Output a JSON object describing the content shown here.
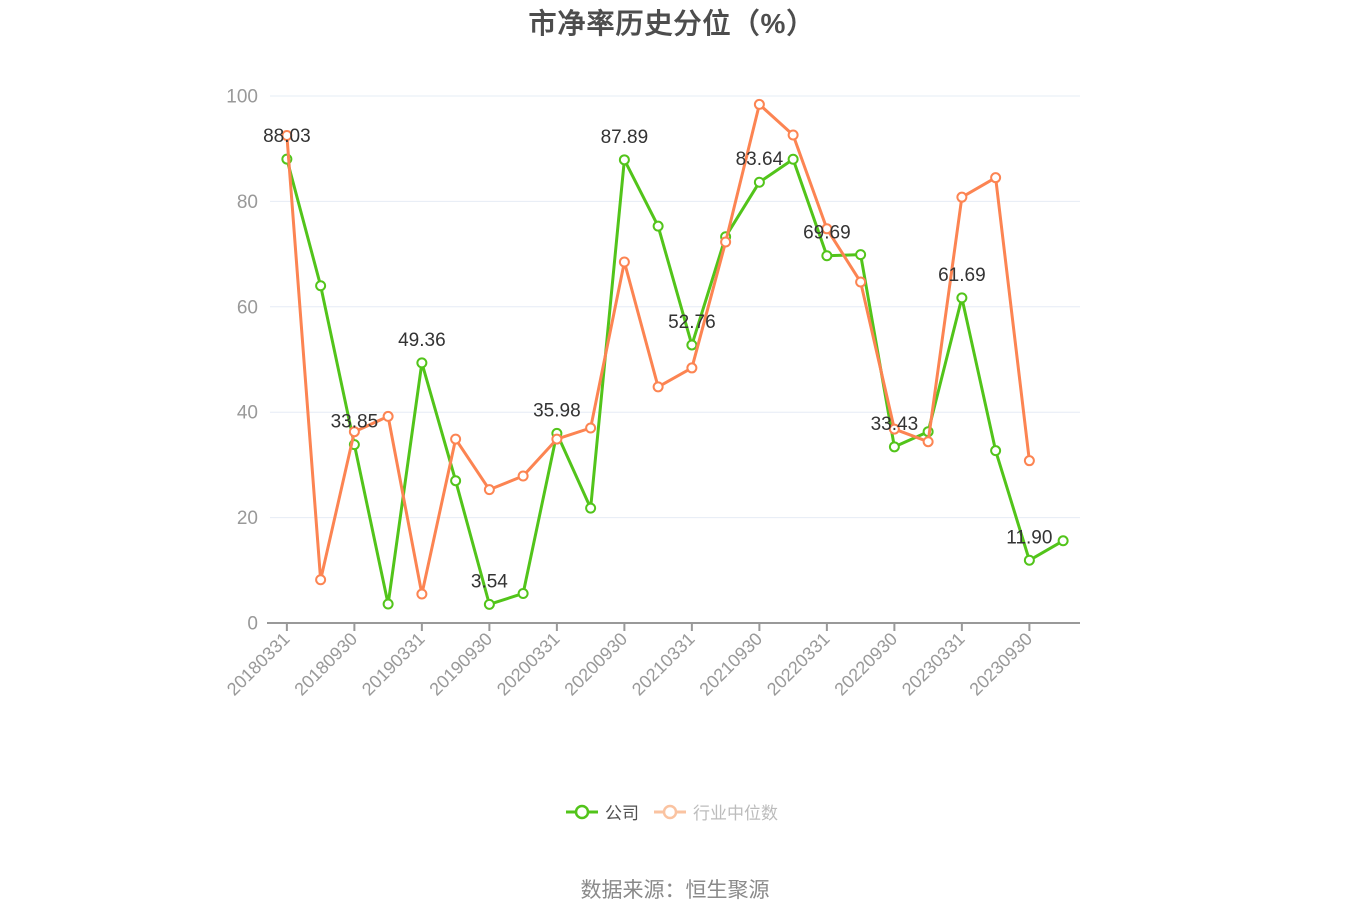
{
  "title": "市净率历史分位（%）",
  "source_note": "数据来源：恒生聚源",
  "colors": {
    "company": "#52c41a",
    "industry": "#fc8452",
    "industry_legend": "#fac3a1",
    "grid": "#e6ecf5",
    "axis": "#999999",
    "tick_label": "#999999",
    "data_label": "#333333"
  },
  "legend": [
    {
      "label": "公司",
      "faded": false
    },
    {
      "label": "行业中位数",
      "faded": true
    }
  ],
  "chart_data": {
    "type": "line",
    "title": "市净率历史分位（%）",
    "xlabel": "",
    "ylabel": "",
    "ylim": [
      0,
      100
    ],
    "y_ticks": [
      0,
      20,
      40,
      60,
      80,
      100
    ],
    "grid": true,
    "legend_position": "bottom",
    "x": [
      "20180331",
      "20180630",
      "20180930",
      "20181231",
      "20190331",
      "20190630",
      "20190930",
      "20191231",
      "20200331",
      "20200630",
      "20200930",
      "20201231",
      "20210331",
      "20210630",
      "20210930",
      "20211231",
      "20220331",
      "20220630",
      "20220930",
      "20221231",
      "20230331",
      "20230630",
      "20230930",
      "20231231"
    ],
    "x_tick_labels": [
      "20180331",
      "20180930",
      "20190331",
      "20190930",
      "20200331",
      "20200930",
      "20210331",
      "20210930",
      "20220331",
      "20220930",
      "20230331",
      "20230930"
    ],
    "series": [
      {
        "name": "公司",
        "values": [
          88.03,
          64.0,
          33.85,
          3.6,
          49.36,
          27.0,
          3.54,
          5.6,
          35.98,
          21.8,
          87.89,
          75.3,
          52.76,
          73.3,
          83.64,
          88.0,
          69.69,
          69.9,
          33.43,
          36.3,
          61.69,
          32.7,
          11.9,
          15.6
        ],
        "point_labels": [
          "88.03",
          null,
          "33.85",
          null,
          "49.36",
          null,
          "3.54",
          null,
          "35.98",
          null,
          "87.89",
          null,
          "52.76",
          null,
          "83.64",
          null,
          "69.69",
          null,
          "33.43",
          null,
          "61.69",
          null,
          "11.90",
          null
        ]
      },
      {
        "name": "行业中位数",
        "values": [
          92.5,
          8.2,
          36.3,
          39.2,
          5.5,
          34.9,
          25.3,
          27.9,
          34.9,
          37.0,
          68.5,
          44.8,
          48.4,
          72.3,
          98.4,
          92.6,
          74.8,
          64.7,
          36.8,
          34.4,
          80.8,
          84.5,
          30.8,
          null
        ],
        "point_labels": []
      }
    ]
  }
}
